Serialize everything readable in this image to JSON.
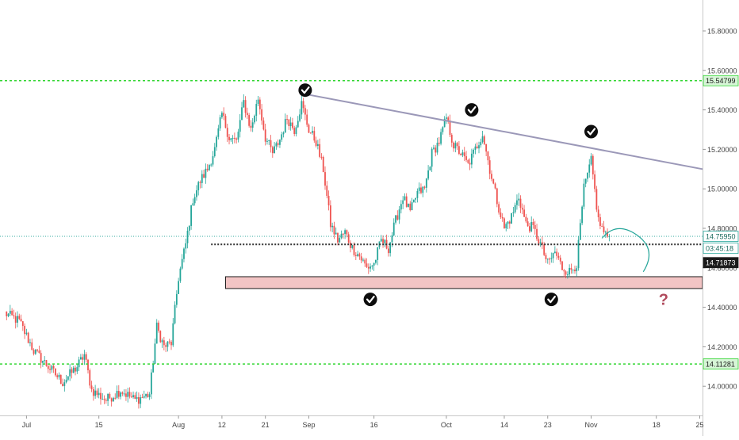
{
  "chart_data": {
    "type": "candlestick",
    "title": "",
    "xlabel": "",
    "ylabel": "",
    "ylim": [
      13.87,
      16.0
    ],
    "grid": false,
    "legend": "none",
    "colors": {
      "up": "#26a69a",
      "down": "#ef5350",
      "trendline": "#9b98b8",
      "green_level": "#33d633",
      "support_zone_fill": "#f2c4c4",
      "support_zone_border": "#1a1a1a",
      "check_marker": "#0d0d0d",
      "question_mark": "#b04a5c",
      "projection": "#26a69a",
      "current_price_badge": "#26a69a",
      "countdown_badge": "#26a69a",
      "dotted_price_badge": "#1a1a1a"
    },
    "x_ticks": [
      {
        "label": "Jul",
        "index": 3
      },
      {
        "label": "15",
        "index": 13
      },
      {
        "label": "Aug",
        "index": 24
      },
      {
        "label": "12",
        "index": 30
      },
      {
        "label": "21",
        "index": 36
      },
      {
        "label": "Sep",
        "index": 42
      },
      {
        "label": "16",
        "index": 51
      },
      {
        "label": "Oct",
        "index": 61
      },
      {
        "label": "14",
        "index": 69
      },
      {
        "label": "23",
        "index": 75
      },
      {
        "label": "Nov",
        "index": 81
      },
      {
        "label": "18",
        "index": 90
      },
      {
        "label": "25",
        "index": 96
      }
    ],
    "y_ticks": [
      "15.80000",
      "15.60000",
      "15.40000",
      "15.20000",
      "15.00000",
      "14.80000",
      "14.60000",
      "14.40000",
      "14.20000",
      "14.00000"
    ],
    "y_tick_values": [
      15.8,
      15.6,
      15.4,
      15.2,
      15.0,
      14.8,
      14.6,
      14.4,
      14.2,
      14.0
    ],
    "price_labels": {
      "upper_level": "15.54799",
      "current_price": "14.75950",
      "countdown": "03:45:18",
      "dotted_level": "14.71873",
      "lower_level": "14.11281"
    },
    "levels": {
      "upper_green": 15.548,
      "lower_green": 14.1128,
      "current": 14.7595,
      "dotted": 14.7187
    },
    "support_zone": {
      "x0": 30.5,
      "x1": 100,
      "y_top": 14.555,
      "y_bottom": 14.495
    },
    "trendline": {
      "x0": 41.5,
      "y0": 15.48,
      "x1": 100,
      "y1": 15.1
    },
    "projection": {
      "x0": 82.5,
      "y0": 14.75,
      "x_peak": 84.5,
      "y_peak": 14.79,
      "x1": 88.2,
      "y1": 14.58
    },
    "check_markers": [
      {
        "x": 41.5,
        "y": 15.5
      },
      {
        "x": 64.5,
        "y": 15.4
      },
      {
        "x": 81.0,
        "y": 15.29
      },
      {
        "x": 50.5,
        "y": 14.44
      },
      {
        "x": 75.5,
        "y": 14.44
      }
    ],
    "question_marker": {
      "x": 91.0,
      "y": 14.44,
      "text": "?"
    },
    "anchors": [
      [
        0,
        14.37
      ],
      [
        2,
        14.33
      ],
      [
        4,
        14.18
      ],
      [
        6,
        14.1
      ],
      [
        8,
        14.02
      ],
      [
        10,
        14.1
      ],
      [
        11,
        14.16
      ],
      [
        12,
        13.98
      ],
      [
        14,
        13.93
      ],
      [
        16,
        13.98
      ],
      [
        18,
        13.93
      ],
      [
        20,
        13.96
      ],
      [
        21,
        14.3
      ],
      [
        22,
        14.2
      ],
      [
        23,
        14.22
      ],
      [
        24,
        14.55
      ],
      [
        25,
        14.72
      ],
      [
        26,
        14.95
      ],
      [
        27,
        15.04
      ],
      [
        28,
        15.1
      ],
      [
        29,
        15.2
      ],
      [
        30,
        15.38
      ],
      [
        31,
        15.26
      ],
      [
        32,
        15.24
      ],
      [
        33,
        15.44
      ],
      [
        34,
        15.3
      ],
      [
        35,
        15.46
      ],
      [
        36,
        15.26
      ],
      [
        37,
        15.18
      ],
      [
        38,
        15.25
      ],
      [
        39,
        15.36
      ],
      [
        40,
        15.3
      ],
      [
        41,
        15.43
      ],
      [
        42,
        15.3
      ],
      [
        43,
        15.24
      ],
      [
        44,
        15.1
      ],
      [
        45,
        14.82
      ],
      [
        46,
        14.74
      ],
      [
        47,
        14.78
      ],
      [
        48,
        14.7
      ],
      [
        49,
        14.66
      ],
      [
        50,
        14.6
      ],
      [
        51,
        14.62
      ],
      [
        52,
        14.74
      ],
      [
        53,
        14.7
      ],
      [
        54,
        14.84
      ],
      [
        55,
        14.96
      ],
      [
        56,
        14.88
      ],
      [
        57,
        14.98
      ],
      [
        58,
        15.0
      ],
      [
        59,
        15.18
      ],
      [
        60,
        15.24
      ],
      [
        61,
        15.36
      ],
      [
        62,
        15.22
      ],
      [
        63,
        15.18
      ],
      [
        64,
        15.12
      ],
      [
        65,
        15.2
      ],
      [
        66,
        15.28
      ],
      [
        67,
        15.1
      ],
      [
        68,
        14.94
      ],
      [
        69,
        14.8
      ],
      [
        70,
        14.86
      ],
      [
        71,
        14.96
      ],
      [
        72,
        14.82
      ],
      [
        73,
        14.8
      ],
      [
        74,
        14.72
      ],
      [
        75,
        14.62
      ],
      [
        76,
        14.68
      ],
      [
        77,
        14.6
      ],
      [
        78,
        14.58
      ],
      [
        79,
        14.62
      ],
      [
        80,
        15.0
      ],
      [
        81,
        15.14
      ],
      [
        82,
        14.84
      ],
      [
        83,
        14.76
      ],
      [
        83.5,
        14.76
      ]
    ]
  }
}
